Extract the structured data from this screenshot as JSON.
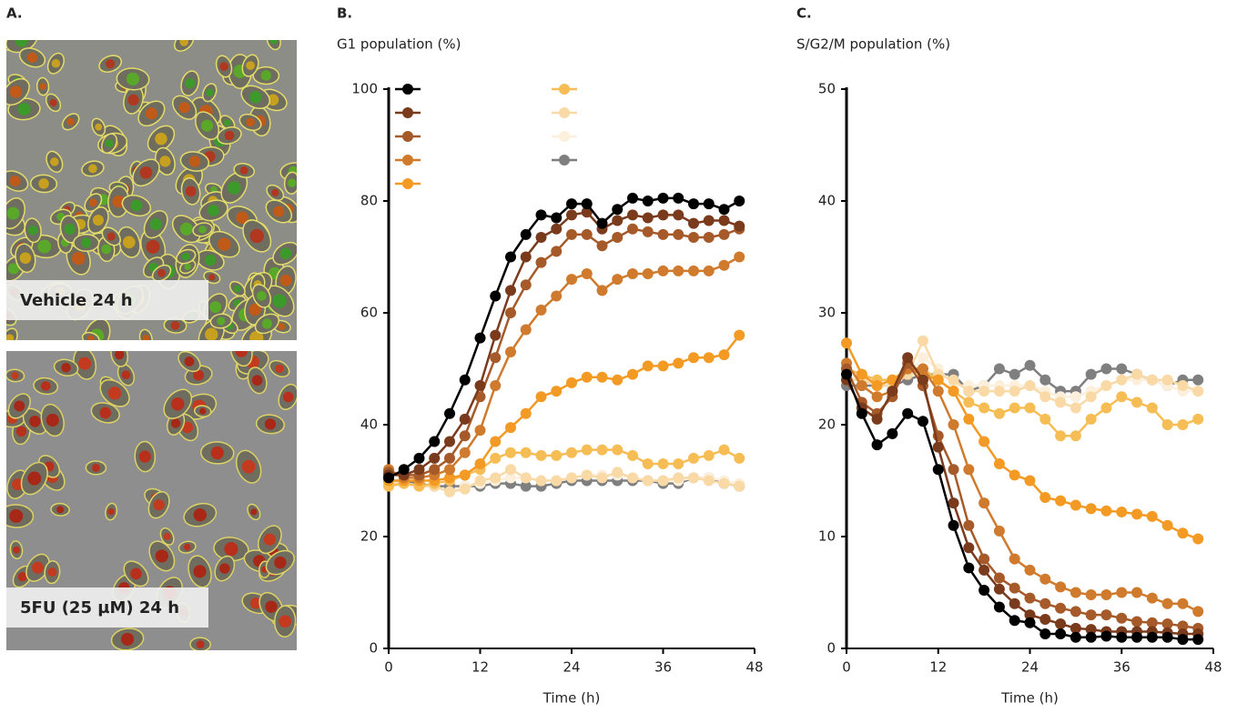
{
  "figure_a": {
    "label": "A.",
    "images": [
      {
        "caption": "Vehicle 24 h"
      },
      {
        "caption": "5FU (25 µM) 24 h"
      }
    ]
  },
  "chart_data": [
    {
      "type": "line",
      "label": "B.",
      "title": "G1 population (%)",
      "x_label": "Time (h)",
      "x": [
        0,
        2,
        4,
        6,
        8,
        10,
        12,
        14,
        16,
        18,
        20,
        22,
        24,
        26,
        28,
        30,
        32,
        34,
        36,
        38,
        40,
        42,
        44,
        46
      ],
      "xlim": [
        0,
        48
      ],
      "xticks": [
        0,
        12,
        24,
        36,
        48
      ],
      "ylim": [
        0,
        100
      ],
      "yticks": [
        0,
        20,
        40,
        60,
        80,
        100
      ],
      "legend": true,
      "series": [
        {
          "color": "#000000",
          "values": [
            30.5,
            32,
            34,
            37,
            42,
            48,
            55.5,
            63,
            70,
            74,
            77.5,
            77,
            79.5,
            79.5,
            76,
            78.5,
            80.5,
            80,
            80.5,
            80.5,
            79.5,
            79.5,
            78.5,
            80
          ]
        },
        {
          "color": "#7a3a1c",
          "values": [
            31,
            31,
            32,
            34,
            37,
            41,
            47,
            56,
            64,
            70,
            73.5,
            75,
            77.5,
            78,
            75,
            76.5,
            77.5,
            77,
            77.5,
            77.5,
            76,
            76.5,
            76.5,
            75.5
          ]
        },
        {
          "color": "#a65a2a",
          "values": [
            31.5,
            31,
            31,
            32,
            34,
            38,
            45,
            52,
            60,
            65,
            69,
            71,
            74,
            74,
            72,
            73.5,
            75,
            74.5,
            74,
            74,
            73.5,
            73.5,
            74,
            75
          ]
        },
        {
          "color": "#cf7a2c",
          "values": [
            32,
            30.5,
            30.5,
            31,
            32,
            35,
            39,
            47,
            53,
            57,
            60.5,
            63,
            66,
            67,
            64,
            66,
            67,
            67,
            67.5,
            67.5,
            67.5,
            67.5,
            68.5,
            70
          ]
        },
        {
          "color": "#f39a25",
          "values": [
            30,
            30,
            30,
            30,
            30.5,
            31,
            33,
            37,
            39.5,
            42,
            45,
            46,
            47.5,
            48.5,
            48.5,
            48,
            49,
            50.5,
            50.5,
            51,
            52,
            52,
            52.5,
            56
          ]
        },
        {
          "color": "#f7bd55",
          "values": [
            29,
            29.5,
            29,
            29.5,
            30,
            31,
            32,
            34,
            35,
            35,
            34.5,
            34.5,
            35,
            35.5,
            35.5,
            35.5,
            34.5,
            33,
            33,
            33,
            34,
            34.5,
            35.5,
            34
          ]
        },
        {
          "color": "#f9d9a6",
          "values": [
            29.5,
            29.5,
            29,
            29,
            28,
            28.5,
            30,
            30.5,
            32,
            30.5,
            30,
            30,
            30.5,
            31,
            30.5,
            31.5,
            30.5,
            30,
            30,
            30.5,
            30.5,
            30,
            29.5,
            29
          ]
        },
        {
          "color": "#fcefdc",
          "values": [
            29.5,
            29.5,
            29,
            29,
            28,
            29,
            29.5,
            30,
            30.5,
            30.5,
            30,
            30,
            30.5,
            31,
            31,
            31,
            30.5,
            30,
            30,
            30,
            30.5,
            30.5,
            30,
            29.5
          ]
        },
        {
          "color": "#7f7f7f",
          "values": [
            30,
            30,
            29.5,
            29,
            29,
            29,
            29,
            29.5,
            29.5,
            29,
            29,
            29.5,
            30,
            30,
            30,
            30,
            30,
            30,
            29.5,
            29.5,
            30.5,
            30.5,
            29.5,
            29
          ]
        }
      ]
    },
    {
      "type": "line",
      "label": "C.",
      "title": "S/G2/M population (%)",
      "x_label": "Time (h)",
      "x": [
        0,
        2,
        4,
        6,
        8,
        10,
        12,
        14,
        16,
        18,
        20,
        22,
        24,
        26,
        28,
        30,
        32,
        34,
        36,
        38,
        40,
        42,
        44,
        46
      ],
      "xlim": [
        0,
        48
      ],
      "xticks": [
        0,
        12,
        24,
        36,
        48
      ],
      "ylim": [
        0,
        50
      ],
      "yticks": [
        0,
        10,
        20,
        30,
        40,
        50
      ],
      "legend": false,
      "series": [
        {
          "color": "#000000",
          "values": [
            24.5,
            21,
            18.2,
            19.2,
            21,
            20.3,
            16,
            11,
            7.2,
            5.2,
            3.7,
            2.5,
            2.3,
            1.3,
            1.3,
            1,
            1,
            1.1,
            1,
            1,
            1,
            1,
            0.8,
            0.8
          ]
        },
        {
          "color": "#7a3a1c",
          "values": [
            24,
            21.5,
            20.5,
            23,
            26,
            24,
            18,
            13,
            9,
            7,
            5.3,
            4,
            3,
            2.6,
            2.2,
            1.8,
            1.7,
            1.5,
            1.5,
            1.5,
            1.5,
            1.4,
            1.3,
            1.3
          ]
        },
        {
          "color": "#a65a2a",
          "values": [
            25,
            22,
            21,
            22.5,
            25.5,
            23.5,
            19,
            16,
            11,
            8,
            6.3,
            5.4,
            4.5,
            4,
            3.6,
            3.3,
            3,
            3,
            2.7,
            2.4,
            2.3,
            2.2,
            2,
            1.8
          ]
        },
        {
          "color": "#cf7a2c",
          "values": [
            25.5,
            23.5,
            22.5,
            23,
            25,
            25,
            23,
            20,
            16,
            13,
            10.5,
            8,
            7,
            6.2,
            5.5,
            5,
            4.8,
            4.8,
            5,
            5,
            4.5,
            4,
            4,
            3.3
          ]
        },
        {
          "color": "#f39a25",
          "values": [
            27.3,
            24.5,
            23.5,
            24,
            25,
            24.5,
            24,
            23,
            20.5,
            18.5,
            16.5,
            15.5,
            15,
            13.5,
            13.2,
            12.8,
            12.5,
            12.3,
            12.2,
            12,
            11.8,
            11,
            10.3,
            9.8
          ]
        },
        {
          "color": "#f7bd55",
          "values": [
            25,
            24.5,
            24,
            24,
            25,
            25,
            24,
            23,
            22,
            21.5,
            21,
            21.5,
            21.5,
            20.5,
            19,
            19,
            20.5,
            21.5,
            22.5,
            22,
            21.5,
            20,
            20,
            20.5
          ]
        },
        {
          "color": "#f9d9a6",
          "values": [
            24,
            24,
            23.5,
            23.5,
            24.5,
            27.5,
            24.5,
            24,
            23,
            23,
            23,
            23,
            23.5,
            22.5,
            22,
            21.5,
            22.5,
            23.5,
            24,
            24.5,
            24,
            24,
            23.5,
            23
          ]
        },
        {
          "color": "#fcefdc",
          "values": [
            24,
            24.5,
            23.5,
            23.5,
            24.5,
            26,
            25,
            23.5,
            23.5,
            23.5,
            23.5,
            23.5,
            23.5,
            23,
            22.5,
            22.5,
            23,
            23.5,
            24,
            24,
            24,
            23.5,
            23,
            23
          ]
        },
        {
          "color": "#7f7f7f",
          "values": [
            23.5,
            23.5,
            23.5,
            23.5,
            24,
            24.5,
            24.5,
            24.5,
            23,
            23.5,
            25,
            24.5,
            25.3,
            24,
            23,
            23,
            24.5,
            25,
            25,
            24.5,
            24,
            23.5,
            24,
            24
          ]
        }
      ]
    }
  ]
}
